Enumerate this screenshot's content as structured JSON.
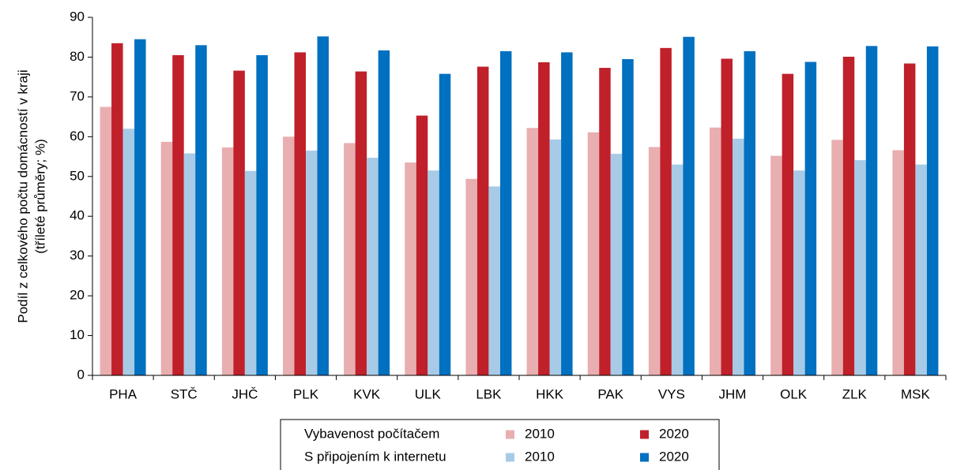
{
  "chart_data": {
    "type": "bar",
    "y_label": [
      "Podíl z celkového počtu domácností v kraji",
      "(tříleté průměry; %)"
    ],
    "categories": [
      "PHA",
      "STČ",
      "JHČ",
      "PLK",
      "KVK",
      "ULK",
      "LBK",
      "HKK",
      "PAK",
      "VYS",
      "JHM",
      "OLK",
      "ZLK",
      "MSK"
    ],
    "legend_rows": [
      "Vybavenost počítačem",
      "S připojením k internetu"
    ],
    "series": [
      {
        "name": "2010",
        "color": "#e8aeb0",
        "values": [
          67.5,
          58.7,
          57.3,
          60.0,
          58.4,
          53.5,
          49.4,
          62.2,
          61.1,
          57.4,
          62.3,
          55.2,
          59.2,
          56.6
        ]
      },
      {
        "name": "2020",
        "color": "#c0202a",
        "values": [
          83.5,
          80.5,
          76.6,
          81.2,
          76.4,
          65.3,
          77.6,
          78.7,
          77.3,
          82.3,
          79.6,
          75.8,
          80.1,
          78.4
        ]
      },
      {
        "name": "2010",
        "color": "#a7cbe6",
        "values": [
          62.0,
          55.8,
          51.4,
          56.5,
          54.7,
          51.5,
          47.5,
          59.3,
          55.7,
          53.0,
          59.5,
          51.5,
          54.1,
          53.0
        ]
      },
      {
        "name": "2020",
        "color": "#0070c0",
        "values": [
          84.5,
          83.0,
          80.5,
          85.2,
          81.7,
          75.8,
          81.5,
          81.2,
          79.5,
          85.1,
          81.5,
          78.8,
          82.8,
          82.7
        ]
      }
    ],
    "ylim": [
      0,
      90
    ],
    "yticks": [
      0,
      10,
      20,
      30,
      40,
      50,
      60,
      70,
      80,
      90
    ],
    "grid": false
  }
}
